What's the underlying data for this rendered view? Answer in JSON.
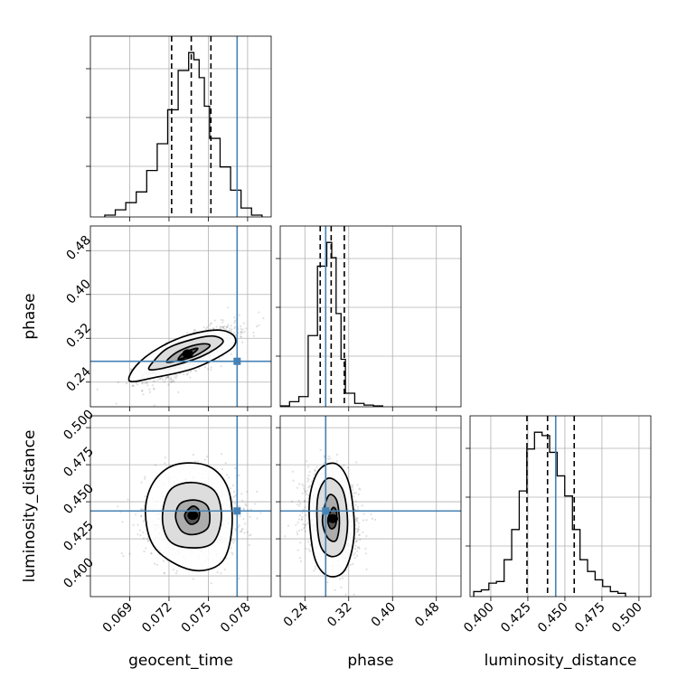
{
  "chart_data": {
    "type": "corner",
    "parameters": [
      {
        "key": "geocent_time",
        "label": "geocent_time",
        "range": [
          0.066,
          0.0798
        ],
        "ticks": [
          0.069,
          0.072,
          0.075,
          0.078
        ],
        "tick_labels": [
          "0.069",
          "0.072",
          "0.075",
          "0.078"
        ],
        "quantiles": [
          0.0722,
          0.0737,
          0.0752
        ],
        "truth": 0.0772,
        "hist": {
          "bin_edges": [
            0.0671,
            0.0679,
            0.0687,
            0.0695,
            0.0703,
            0.0711,
            0.0719,
            0.0727,
            0.0735,
            0.0739,
            0.0743,
            0.0747,
            0.0751,
            0.0759,
            0.0767,
            0.0775,
            0.0783,
            0.0791
          ],
          "counts": [
            1,
            4,
            8,
            14,
            26,
            41,
            60,
            82,
            92,
            88,
            78,
            62,
            44,
            28,
            15,
            5,
            1
          ]
        }
      },
      {
        "key": "phase",
        "label": "phase",
        "range": [
          0.195,
          0.525
        ],
        "ticks": [
          0.24,
          0.32,
          0.4,
          0.48
        ],
        "tick_labels": [
          "0.24",
          "0.32",
          "0.40",
          "0.48"
        ],
        "quantiles": [
          0.268,
          0.288,
          0.312
        ],
        "truth": 0.278,
        "hist": {
          "bin_edges": [
            0.195,
            0.212,
            0.229,
            0.246,
            0.263,
            0.28,
            0.289,
            0.297,
            0.306,
            0.314,
            0.331,
            0.348,
            0.365,
            0.382
          ],
          "counts": [
            0.5,
            3,
            6,
            42,
            83,
            97,
            88,
            55,
            28,
            8,
            2,
            1,
            0.5
          ]
        }
      },
      {
        "key": "luminosity_distance",
        "label": "luminosity_distance",
        "range": [
          0.386,
          0.508
        ],
        "ticks": [
          0.4,
          0.425,
          0.45,
          0.475,
          0.5
        ],
        "tick_labels": [
          "0.400",
          "0.425",
          "0.450",
          "0.475",
          "0.500"
        ],
        "quantiles": [
          0.4244,
          0.4383,
          0.4563
        ],
        "truth": 0.4438,
        "hist": {
          "bin_edges": [
            0.3885,
            0.3936,
            0.3987,
            0.4038,
            0.409,
            0.4141,
            0.4192,
            0.4243,
            0.4295,
            0.4346,
            0.4397,
            0.4448,
            0.4499,
            0.4551,
            0.4602,
            0.4653,
            0.4704,
            0.4755,
            0.4807,
            0.4858,
            0.4909
          ],
          "counts": [
            3,
            4,
            8,
            9,
            22,
            40,
            63,
            88,
            98,
            96,
            86,
            72,
            60,
            40,
            22,
            15,
            10,
            6,
            3,
            2
          ]
        }
      }
    ],
    "pairs": [
      {
        "x": "geocent_time",
        "y": "phase",
        "truth_point": [
          0.0772,
          0.278
        ],
        "mean": [
          0.0736,
          0.292
        ],
        "sd": [
          0.00175,
          0.024
        ],
        "corr": 0.75,
        "contours": [
          [
            [
              0.0727,
              0.282
            ],
            [
              0.0731,
              0.284
            ],
            [
              0.0737,
              0.29
            ],
            [
              0.0742,
              0.301
            ],
            [
              0.0738,
              0.3
            ],
            [
              0.0731,
              0.293
            ]
          ],
          [
            [
              0.0718,
              0.277
            ],
            [
              0.0727,
              0.279
            ],
            [
              0.074,
              0.288
            ],
            [
              0.0751,
              0.305
            ],
            [
              0.0747,
              0.31
            ],
            [
              0.0736,
              0.305
            ],
            [
              0.0725,
              0.293
            ]
          ],
          [
            [
              0.0705,
              0.263
            ],
            [
              0.072,
              0.268
            ],
            [
              0.0745,
              0.287
            ],
            [
              0.0761,
              0.312
            ],
            [
              0.0754,
              0.324
            ],
            [
              0.0738,
              0.318
            ],
            [
              0.0719,
              0.302
            ],
            [
              0.0709,
              0.28
            ]
          ],
          [
            [
              0.069,
              0.242
            ],
            [
              0.0708,
              0.248
            ],
            [
              0.074,
              0.266
            ],
            [
              0.0767,
              0.3
            ],
            [
              0.077,
              0.323
            ],
            [
              0.0758,
              0.335
            ],
            [
              0.0735,
              0.326
            ],
            [
              0.0712,
              0.302
            ],
            [
              0.0695,
              0.27
            ]
          ]
        ]
      },
      {
        "x": "geocent_time",
        "y": "luminosity_distance",
        "truth_point": [
          0.0772,
          0.4438
        ],
        "mean": [
          0.0737,
          0.44
        ],
        "sd": [
          0.00175,
          0.0145
        ],
        "corr": 0.0,
        "contours": [
          [
            [
              0.0732,
              0.441
            ],
            [
              0.0736,
              0.435
            ],
            [
              0.0742,
              0.437
            ],
            [
              0.0743,
              0.444
            ],
            [
              0.0738,
              0.447
            ]
          ],
          [
            [
              0.0725,
              0.44
            ],
            [
              0.073,
              0.43
            ],
            [
              0.074,
              0.428
            ],
            [
              0.075,
              0.433
            ],
            [
              0.075,
              0.446
            ],
            [
              0.0741,
              0.451
            ],
            [
              0.0729,
              0.449
            ]
          ],
          [
            [
              0.0715,
              0.44
            ],
            [
              0.072,
              0.424
            ],
            [
              0.0735,
              0.419
            ],
            [
              0.0753,
              0.422
            ],
            [
              0.076,
              0.439
            ],
            [
              0.0755,
              0.457
            ],
            [
              0.0738,
              0.463
            ],
            [
              0.0721,
              0.458
            ]
          ],
          [
            [
              0.0702,
              0.442
            ],
            [
              0.071,
              0.418
            ],
            [
              0.0737,
              0.404
            ],
            [
              0.076,
              0.409
            ],
            [
              0.0768,
              0.432
            ],
            [
              0.0765,
              0.459
            ],
            [
              0.075,
              0.474
            ],
            [
              0.0725,
              0.475
            ],
            [
              0.0708,
              0.463
            ]
          ]
        ]
      },
      {
        "x": "phase",
        "y": "luminosity_distance",
        "truth_point": [
          0.278,
          0.4438
        ],
        "mean": [
          0.29,
          0.44
        ],
        "sd": [
          0.024,
          0.0145
        ],
        "corr": -0.15,
        "contours": [
          [
            [
              0.282,
              0.438
            ],
            [
              0.287,
              0.432
            ],
            [
              0.296,
              0.434
            ],
            [
              0.298,
              0.443
            ],
            [
              0.291,
              0.446
            ]
          ],
          [
            [
              0.272,
              0.438
            ],
            [
              0.281,
              0.426
            ],
            [
              0.297,
              0.424
            ],
            [
              0.303,
              0.436
            ],
            [
              0.298,
              0.451
            ],
            [
              0.283,
              0.454
            ]
          ],
          [
            [
              0.262,
              0.44
            ],
            [
              0.269,
              0.42
            ],
            [
              0.289,
              0.413
            ],
            [
              0.31,
              0.418
            ],
            [
              0.318,
              0.436
            ],
            [
              0.309,
              0.458
            ],
            [
              0.284,
              0.466
            ],
            [
              0.266,
              0.457
            ]
          ],
          [
            [
              0.248,
              0.44
            ],
            [
              0.258,
              0.412
            ],
            [
              0.282,
              0.4
            ],
            [
              0.313,
              0.404
            ],
            [
              0.33,
              0.428
            ],
            [
              0.322,
              0.46
            ],
            [
              0.3,
              0.475
            ],
            [
              0.27,
              0.473
            ],
            [
              0.252,
              0.459
            ]
          ]
        ]
      }
    ],
    "grid": true
  }
}
